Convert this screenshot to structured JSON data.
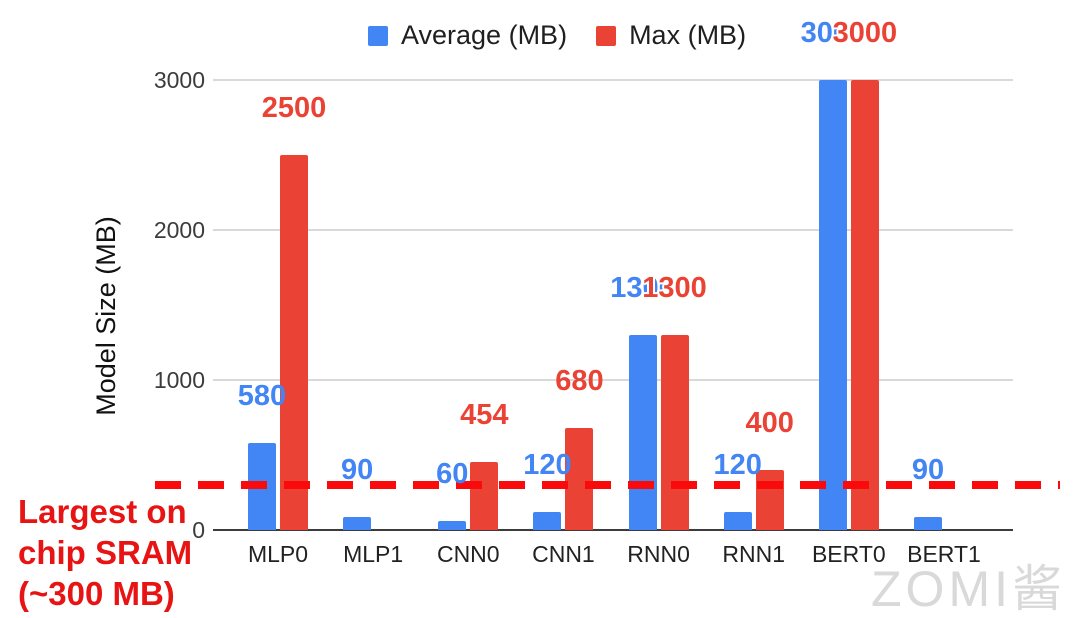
{
  "chart_data": {
    "type": "bar",
    "categories": [
      "MLP0",
      "MLP1",
      "CNN0",
      "CNN1",
      "RNN0",
      "RNN1",
      "BERT0",
      "BERT1"
    ],
    "series": [
      {
        "name": "Average (MB)",
        "color": "#4285f4",
        "values": [
          580,
          90,
          60,
          120,
          1300,
          120,
          3000,
          90
        ]
      },
      {
        "name": "Max (MB)",
        "color": "#ea4335",
        "values": [
          2500,
          null,
          454,
          680,
          1300,
          400,
          3000,
          null
        ]
      }
    ],
    "ylabel": "Model Size (MB)",
    "yticks": [
      0,
      1000,
      2000,
      3000
    ],
    "ylim": [
      0,
      3000
    ],
    "grid": true,
    "legend_position": "top",
    "data_labels": true,
    "annotation": {
      "text_lines": [
        "Largest on",
        "chip SRAM",
        "(~300 MB)"
      ],
      "color": "#e81414",
      "line_value": 300,
      "line_color": "#fa0a0a",
      "line_style": "dashed"
    },
    "watermark": "ZOMI酱"
  }
}
